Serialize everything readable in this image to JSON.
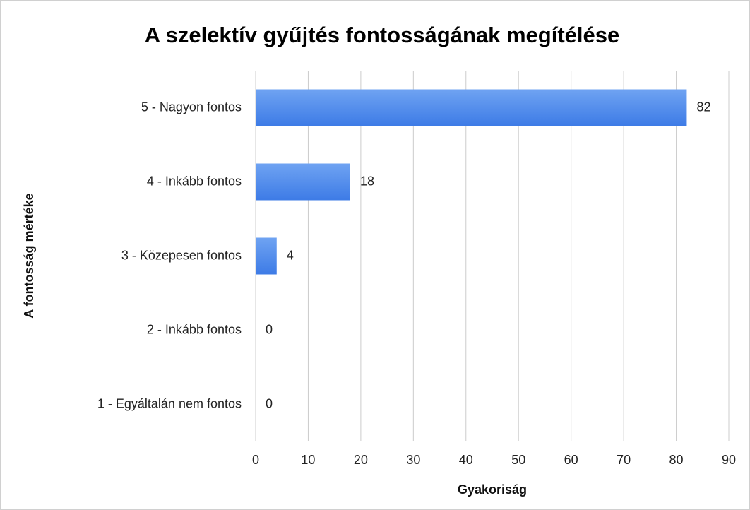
{
  "chart_data": {
    "type": "barh",
    "title": "A szelektív gyűjtés fontosságának megítélése",
    "x_label": "Gyakoriság",
    "y_label": "A fontosság mértéke",
    "categories": [
      "5 - Nagyon fontos",
      "4 - Inkább fontos",
      "3 - Közepesen fontos",
      "2 - Inkább fontos",
      "1 - Egyáltalán nem fontos"
    ],
    "values": [
      82,
      18,
      4,
      0,
      0
    ],
    "color": "#3d7be6",
    "xlim": [
      0,
      90
    ],
    "xticks": [
      0,
      10,
      20,
      30,
      40,
      50,
      60,
      70,
      80,
      90
    ],
    "grid": true
  }
}
